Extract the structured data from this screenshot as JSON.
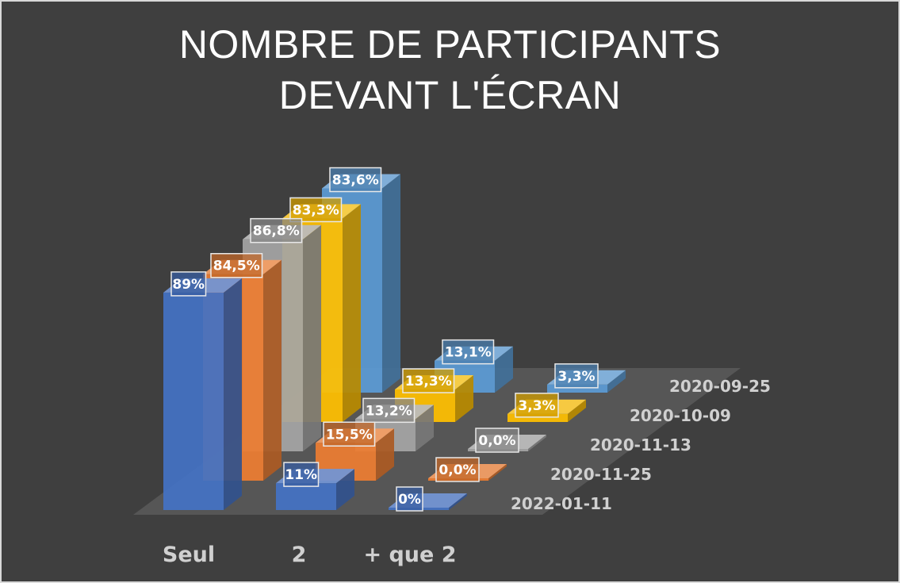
{
  "chart_data": {
    "type": "bar",
    "title_lines": [
      "NOMBRE DE PARTICIPANTS",
      "DEVANT L'ÉCRAN"
    ],
    "categories": [
      "Seul",
      "2",
      "+ que 2"
    ],
    "series": [
      {
        "name": "2022-01-11",
        "color": "#4472c4",
        "values": [
          89,
          11,
          0
        ],
        "labels": [
          "89%",
          "11%",
          "0%"
        ]
      },
      {
        "name": "2020-11-25",
        "color": "#ed7d31",
        "values": [
          84.5,
          15.5,
          0.0
        ],
        "labels": [
          "84,5%",
          "15,5%",
          "0,0%"
        ]
      },
      {
        "name": "2020-11-13",
        "color": "#a5a5a5",
        "values": [
          86.8,
          13.2,
          0.0
        ],
        "labels": [
          "86,8%",
          "13,2%",
          "0,0%"
        ]
      },
      {
        "name": "2020-10-09",
        "color": "#ffc000",
        "values": [
          83.3,
          13.3,
          3.3
        ],
        "labels": [
          "83,3%",
          "13,3%",
          "3,3%"
        ]
      },
      {
        "name": "2020-09-25",
        "color": "#5b9bd5",
        "values": [
          83.6,
          13.1,
          3.3
        ],
        "labels": [
          "83,6%",
          "13,1%",
          "3,3%"
        ]
      }
    ],
    "ylim": [
      0,
      100
    ],
    "grid": false,
    "legend": "none"
  },
  "colors": {
    "background": "#3f3f3f",
    "floor": "#5a5a5a",
    "border": "#d9d9d9",
    "text": "#ffffff",
    "axis_text": "#d0d0d0"
  }
}
